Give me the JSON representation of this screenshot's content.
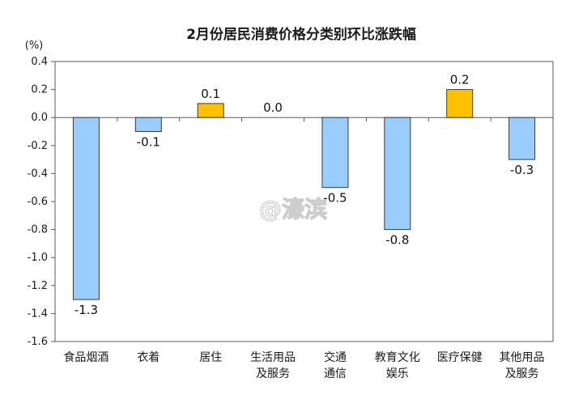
{
  "chart_data": {
    "type": "bar",
    "title": "2月份居民消费价格分类别环比涨跌幅",
    "unit": "(%)",
    "categories": [
      [
        "食品烟酒"
      ],
      [
        "衣着"
      ],
      [
        "居住"
      ],
      [
        "生活用品",
        "及服务"
      ],
      [
        "交通",
        "通信"
      ],
      [
        "教育文化",
        "娱乐"
      ],
      [
        "医疗保健"
      ],
      [
        "其他用品",
        "及服务"
      ]
    ],
    "values": [
      -1.3,
      -0.1,
      0.1,
      0.0,
      -0.5,
      -0.8,
      0.2,
      -0.3
    ],
    "value_labels": [
      "-1.3",
      "-0.1",
      "0.1",
      "0.0",
      "-0.5",
      "-0.8",
      "0.2",
      "-0.3"
    ],
    "ylim": [
      -1.6,
      0.4
    ],
    "yticks": [
      "0.4",
      "0.2",
      "0.0",
      "-0.2",
      "-0.4",
      "-0.6",
      "-0.8",
      "-1.0",
      "-1.2",
      "-1.4",
      "-1.6"
    ],
    "grid": false,
    "colors": {
      "negative_fill": "#99ccff",
      "positive_fill": "#ffc000",
      "bar_stroke": "#3a3a3a",
      "axis": "#595959"
    }
  },
  "watermark": "@濠滨"
}
